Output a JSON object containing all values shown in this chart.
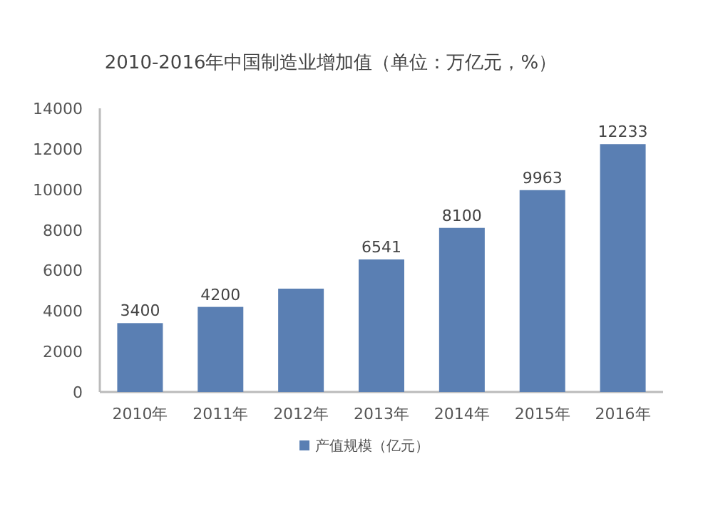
{
  "chart_data": {
    "type": "bar",
    "title": "2010-2016年中国制造业增加值（单位：万亿元，%）",
    "categories": [
      "2010年",
      "2011年",
      "2012年",
      "2013年",
      "2014年",
      "2015年",
      "2016年"
    ],
    "series": [
      {
        "name": "产值规模（亿元）",
        "color": "#5a7fb3",
        "values": [
          3400,
          4200,
          5100,
          6541,
          8100,
          9963,
          12233
        ],
        "value_labels": [
          "3400",
          "4200",
          null,
          "6541",
          "8100",
          "9963",
          "12233"
        ]
      }
    ],
    "ylim": [
      0,
      14000
    ],
    "yticks": [
      0,
      2000,
      4000,
      6000,
      8000,
      10000,
      12000,
      14000
    ],
    "grid": false,
    "legend": "bottom"
  }
}
